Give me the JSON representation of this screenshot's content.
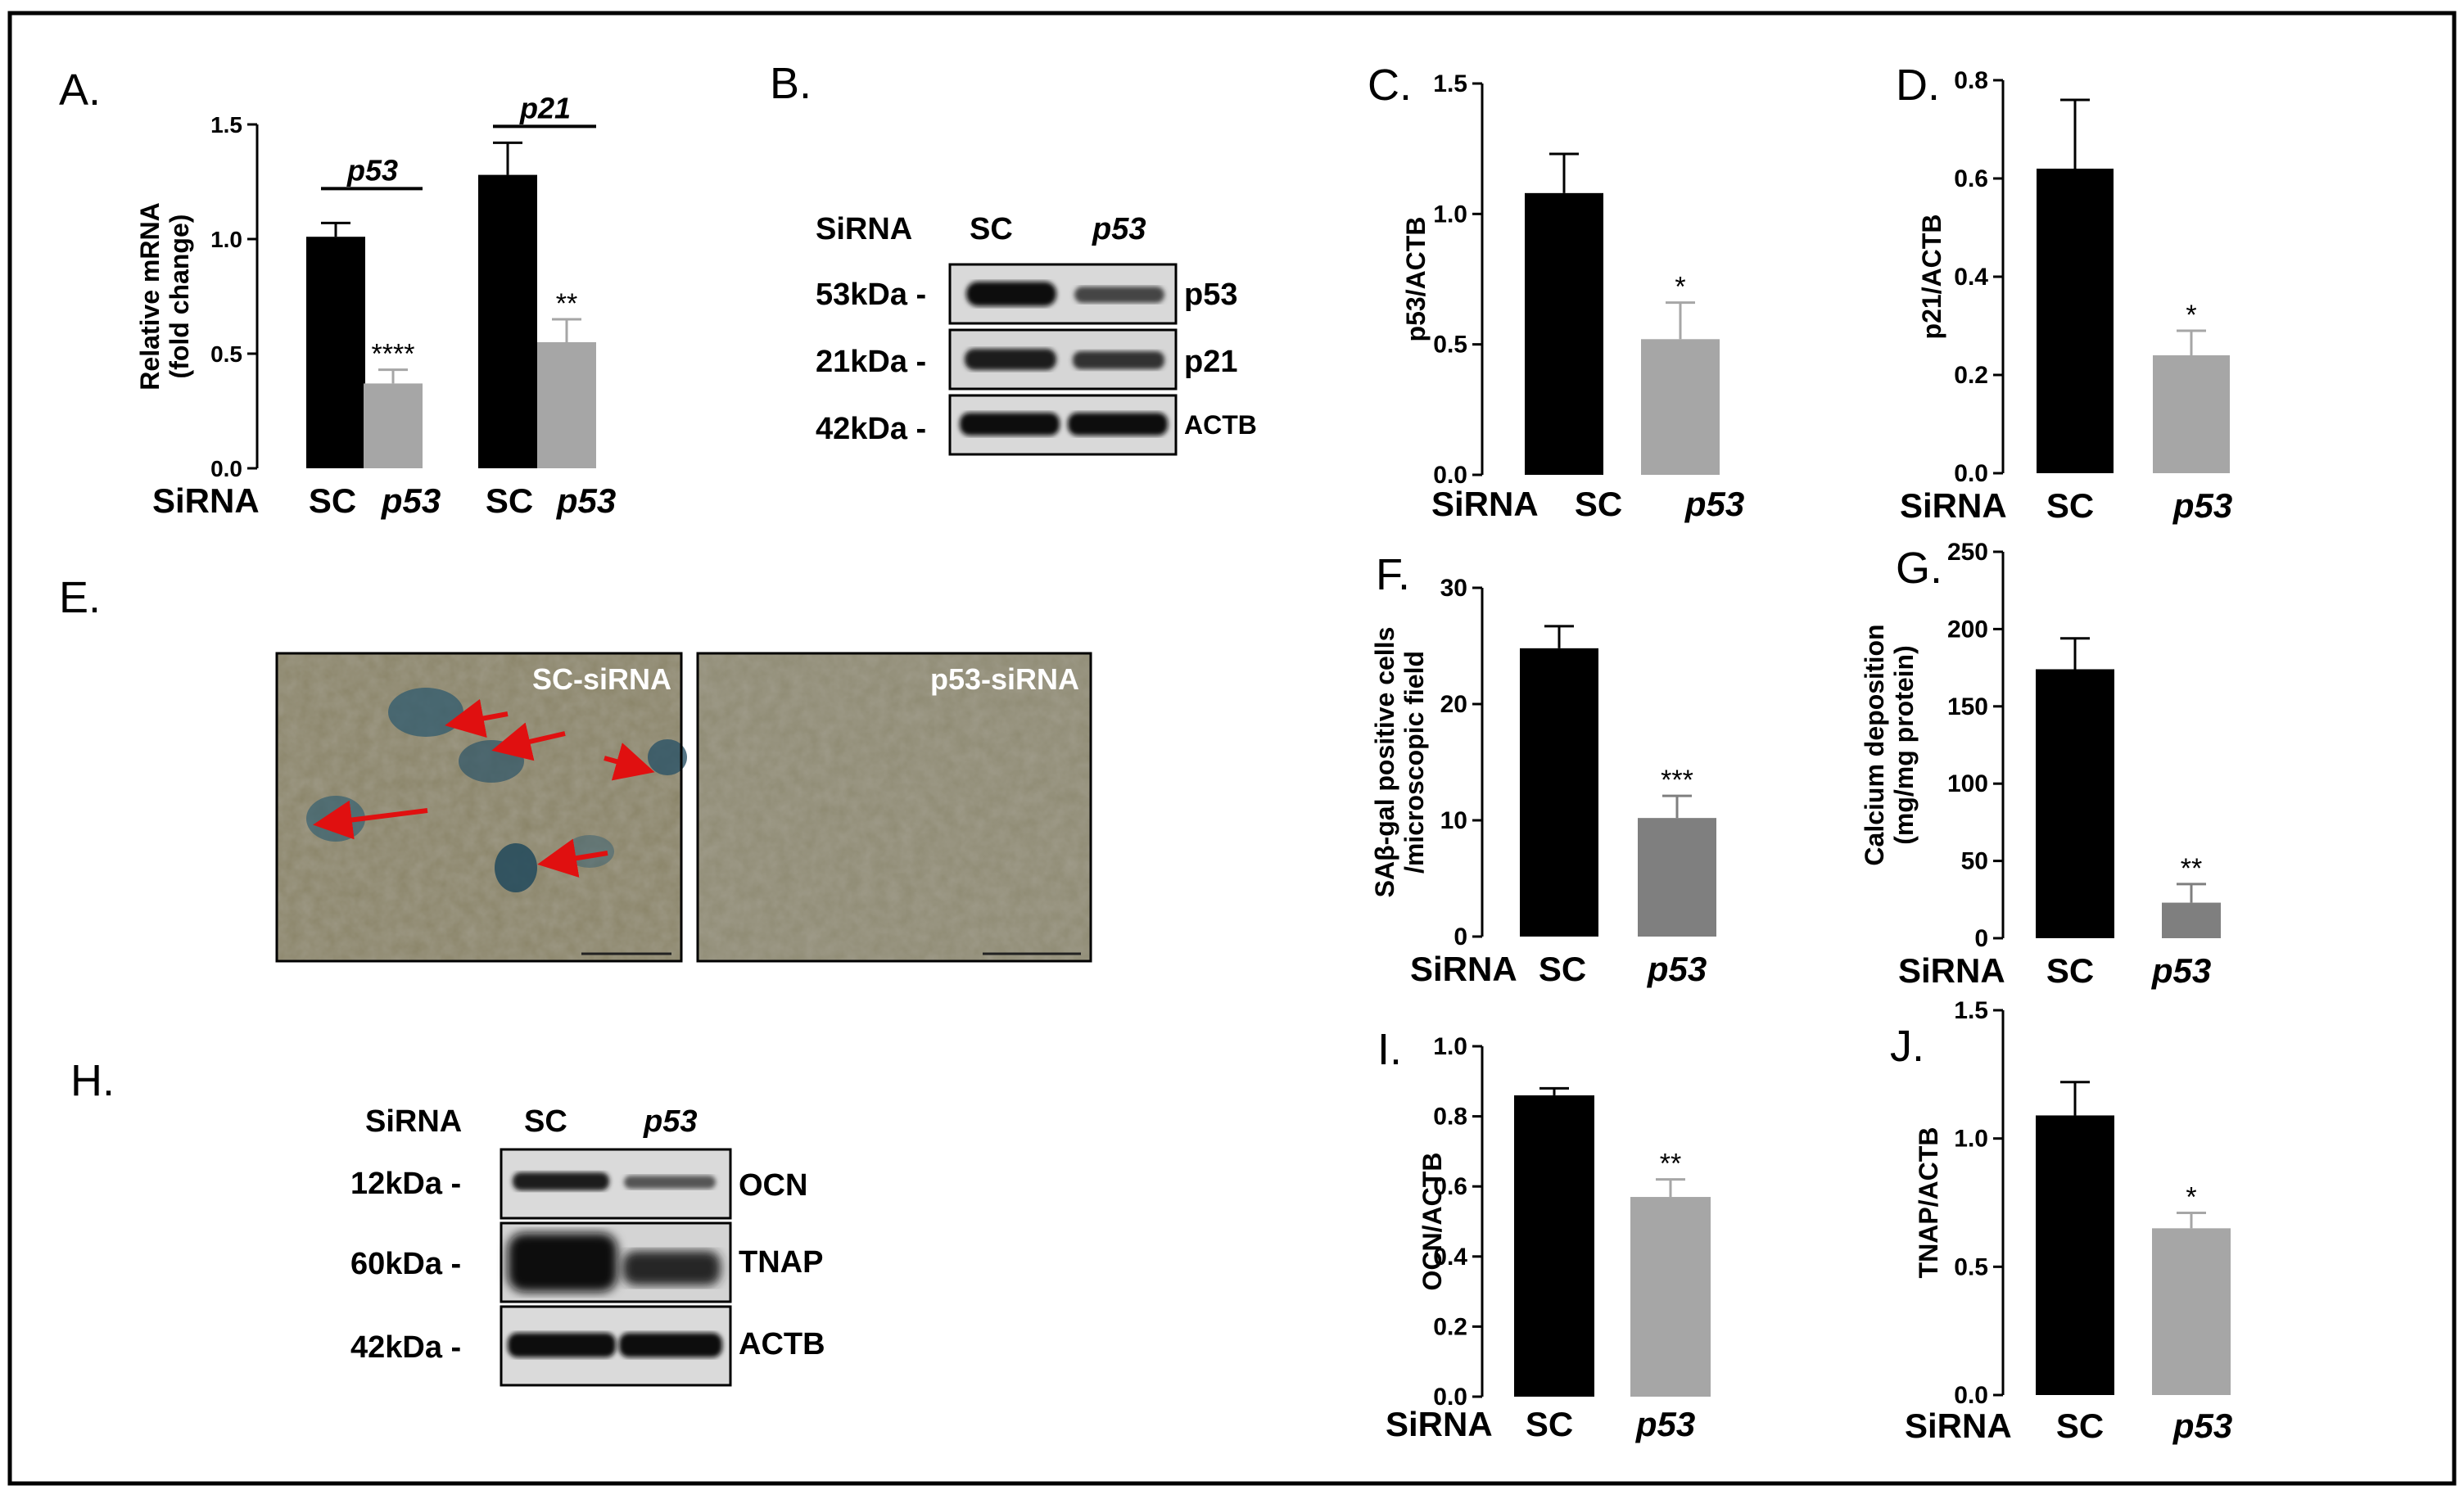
{
  "figure": {
    "panel_letters": {
      "A": "A.",
      "B": "B.",
      "C": "C.",
      "D": "D.",
      "E": "E.",
      "F": "F.",
      "G": "G.",
      "H": "H.",
      "I": "I.",
      "J": "J."
    },
    "sirna_label": "SiRNA",
    "sc_label": "SC",
    "p53_label": "p53"
  },
  "blots": {
    "B": {
      "header_sc": "SC",
      "header_p53": "p53",
      "rows": [
        {
          "kda": "53kDa -",
          "protein": "p53"
        },
        {
          "kda": "21kDa -",
          "protein": "p21"
        },
        {
          "kda": "42kDa -",
          "protein": "ACTB"
        }
      ]
    },
    "H": {
      "header_sc": "SC",
      "header_p53": "p53",
      "rows": [
        {
          "kda": "12kDa -",
          "protein": "OCN"
        },
        {
          "kda": "60kDa -",
          "protein": "TNAP"
        },
        {
          "kda": "42kDa -",
          "protein": "ACTB"
        }
      ]
    }
  },
  "micrographs": {
    "left_label": "SC-siRNA",
    "right_label": "p53-siRNA"
  },
  "colors": {
    "black_bar": "#000000",
    "gray_bar": "#a6a6a6",
    "dark_gray_bar": "#7f7f7f",
    "arrow": "#e01010"
  },
  "chart_data": [
    {
      "id": "A",
      "type": "bar",
      "ylabel": "Relative mRNA\n(fold change)",
      "ylim": [
        0,
        1.5
      ],
      "yticks": [
        "0.0",
        "0.5",
        "1.0",
        "1.5"
      ],
      "groups": [
        {
          "name": "p53",
          "bars": [
            {
              "category": "SC",
              "value": 1.01,
              "error": 0.06,
              "color": "black",
              "sig": ""
            },
            {
              "category": "p53",
              "value": 0.37,
              "error": 0.06,
              "color": "gray",
              "sig": "****"
            }
          ]
        },
        {
          "name": "p21",
          "bars": [
            {
              "category": "SC",
              "value": 1.28,
              "error": 0.14,
              "color": "black",
              "sig": ""
            },
            {
              "category": "p53",
              "value": 0.55,
              "error": 0.1,
              "color": "gray",
              "sig": "**"
            }
          ]
        }
      ]
    },
    {
      "id": "C",
      "type": "bar",
      "ylabel": "p53/ACTB",
      "ylim": [
        0,
        1.5
      ],
      "yticks": [
        "0.0",
        "0.5",
        "1.0",
        "1.5"
      ],
      "categories": [
        "SC",
        "p53"
      ],
      "values": [
        1.08,
        0.52
      ],
      "errors": [
        0.15,
        0.14
      ],
      "colors": [
        "black",
        "gray"
      ],
      "sig": [
        "",
        "*"
      ]
    },
    {
      "id": "D",
      "type": "bar",
      "ylabel": "p21/ACTB",
      "ylim": [
        0,
        0.8
      ],
      "yticks": [
        "0.0",
        "0.2",
        "0.4",
        "0.6",
        "0.8"
      ],
      "categories": [
        "SC",
        "p53"
      ],
      "values": [
        0.62,
        0.24
      ],
      "errors": [
        0.14,
        0.05
      ],
      "colors": [
        "black",
        "gray"
      ],
      "sig": [
        "",
        "*"
      ]
    },
    {
      "id": "F",
      "type": "bar",
      "ylabel": "SAβ-gal positive cells\n/microscopic field",
      "ylim": [
        0,
        30
      ],
      "yticks": [
        "0",
        "10",
        "20",
        "30"
      ],
      "categories": [
        "SC",
        "p53"
      ],
      "values": [
        24.8,
        10.2
      ],
      "errors": [
        1.9,
        1.9
      ],
      "colors": [
        "black",
        "darkgray"
      ],
      "sig": [
        "",
        "***"
      ]
    },
    {
      "id": "G",
      "type": "bar",
      "ylabel": "Calcium deposition\n(mg/mg protein)",
      "ylim": [
        0,
        250
      ],
      "yticks": [
        "0",
        "50",
        "100",
        "150",
        "200",
        "250"
      ],
      "categories": [
        "SC",
        "p53"
      ],
      "values": [
        174,
        23
      ],
      "errors": [
        20,
        12
      ],
      "colors": [
        "black",
        "darkgray"
      ],
      "sig": [
        "",
        "**"
      ]
    },
    {
      "id": "I",
      "type": "bar",
      "ylabel": "OCN/ACTB",
      "ylim": [
        0,
        1.0
      ],
      "yticks": [
        "0.0",
        "0.2",
        "0.4",
        "0.6",
        "0.8",
        "1.0"
      ],
      "categories": [
        "SC",
        "p53"
      ],
      "values": [
        0.86,
        0.57
      ],
      "errors": [
        0.02,
        0.05
      ],
      "colors": [
        "black",
        "gray"
      ],
      "sig": [
        "",
        "**"
      ]
    },
    {
      "id": "J",
      "type": "bar",
      "ylabel": "TNAP/ACTB",
      "ylim": [
        0,
        1.5
      ],
      "yticks": [
        "0.0",
        "0.5",
        "1.0",
        "1.5"
      ],
      "categories": [
        "SC",
        "p53"
      ],
      "values": [
        1.09,
        0.65
      ],
      "errors": [
        0.13,
        0.06
      ],
      "colors": [
        "black",
        "gray"
      ],
      "sig": [
        "",
        "*"
      ]
    }
  ]
}
